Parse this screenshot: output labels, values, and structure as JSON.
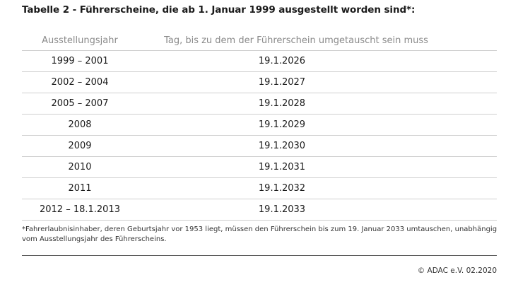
{
  "title": "Tabelle 2 - Führerscheine, die ab 1. Januar 1999 ausgestellt worden sind*:",
  "table": {
    "headers": {
      "year": "Ausstellungsjahr",
      "deadline": "Tag, bis zu dem der Führerschein umgetauscht sein muss"
    },
    "rows": [
      {
        "year": "1999 – 2001",
        "deadline": "19.1.2026"
      },
      {
        "year": "2002 – 2004",
        "deadline": "19.1.2027"
      },
      {
        "year": "2005 – 2007",
        "deadline": "19.1.2028"
      },
      {
        "year": "2008",
        "deadline": "19.1.2029"
      },
      {
        "year": "2009",
        "deadline": "19.1.2030"
      },
      {
        "year": "2010",
        "deadline": "19.1.2031"
      },
      {
        "year": "2011",
        "deadline": "19.1.2032"
      },
      {
        "year": "2012 – 18.1.2013",
        "deadline": "19.1.2033"
      }
    ]
  },
  "footnote": "*Fahrerlaubnisinhaber, deren Geburtsjahr vor 1953 liegt, müssen den Führerschein bis zum 19. Januar 2033 umtauschen, unabhängig vom Ausstellungsjahr des Führerscheins.",
  "copyright": "© ADAC e.V. 02.2020"
}
